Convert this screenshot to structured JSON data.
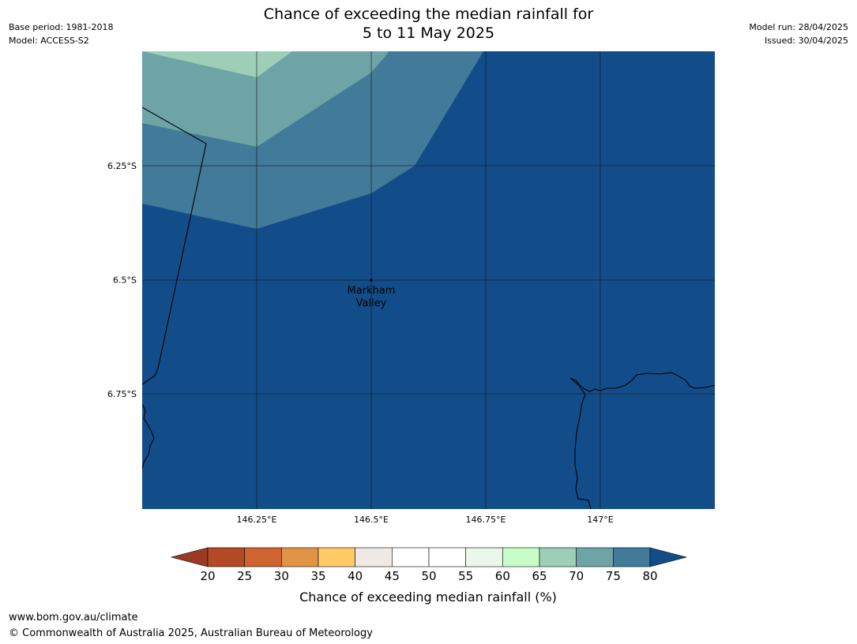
{
  "header": {
    "title_line1": "Chance of exceeding the median rainfall for",
    "title_line2": "5 to 11 May 2025",
    "base_period": "Base period: 1981-2018",
    "model": "Model: ACCESS-S2",
    "model_run": "Model run: 28/04/2025",
    "issued": "Issued: 30/04/2025"
  },
  "map": {
    "lat_ticks": [
      {
        "value": -6.25,
        "label": "6.25°S"
      },
      {
        "value": -6.5,
        "label": "6.5°S"
      },
      {
        "value": -6.75,
        "label": "6.75°S"
      }
    ],
    "lon_ticks": [
      {
        "value": 146.25,
        "label": "146.25°E"
      },
      {
        "value": 146.5,
        "label": "146.5°E"
      },
      {
        "value": 146.75,
        "label": "146.75°E"
      },
      {
        "value": 147.0,
        "label": "147°E"
      }
    ],
    "place": {
      "name_line1": "Markham",
      "name_line2": "Valley",
      "lon": 146.5,
      "lat": -6.5
    }
  },
  "colorbar": {
    "ticks": [
      "20",
      "25",
      "30",
      "35",
      "40",
      "45",
      "50",
      "55",
      "60",
      "65",
      "70",
      "75",
      "80"
    ],
    "colors": {
      "below_20": "#9b3a24",
      "20_25": "#b34a25",
      "25_30": "#cf6430",
      "30_35": "#e29446",
      "35_40": "#fecb67",
      "40_45": "#eee9e4",
      "45_50": "#ffffff",
      "50_55": "#ffffff",
      "55_60": "#eaf7ea",
      "60_65": "#c8fcc8",
      "65_70": "#9dcfb8",
      "70_75": "#6ea4a6",
      "75_80": "#427a99",
      "above_80": "#134d89"
    },
    "label": "Chance of exceeding median rainfall (%)"
  },
  "footer": {
    "url": "www.bom.gov.au/climate",
    "copyright": "© Commonwealth of Australia 2025, Australian Bureau of Meteorology"
  }
}
